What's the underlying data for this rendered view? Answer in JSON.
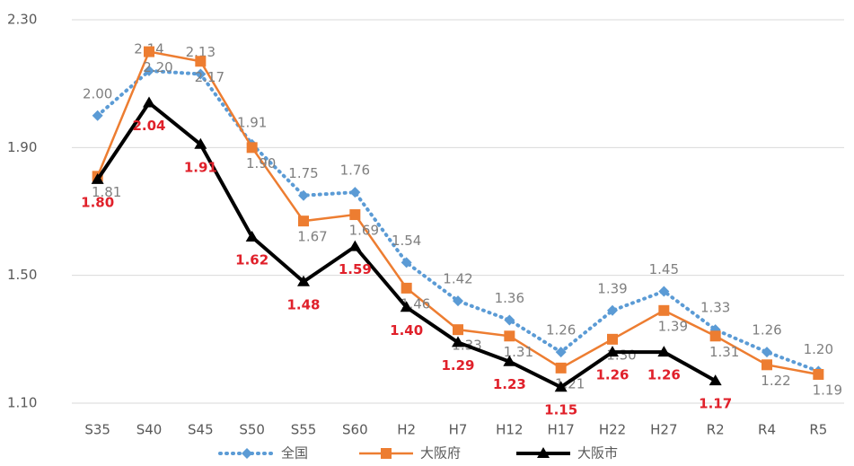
{
  "chart_data": {
    "type": "line",
    "categories": [
      "S35",
      "S40",
      "S45",
      "S50",
      "S55",
      "S60",
      "H2",
      "H7",
      "H12",
      "H17",
      "H22",
      "H27",
      "R2",
      "R4",
      "R5"
    ],
    "ylim": [
      1.1,
      2.3
    ],
    "yticks": [
      {
        "value": 1.1,
        "label": "1.10"
      },
      {
        "value": 1.5,
        "label": "1.50"
      },
      {
        "value": 1.9,
        "label": "1.90"
      },
      {
        "value": 2.3,
        "label": "2.30"
      }
    ],
    "grid": true,
    "legend": "bottom",
    "series": [
      {
        "name": "全国",
        "color": "#5b9bd5",
        "style": "dotted",
        "marker": "diamond",
        "values": [
          2.0,
          2.14,
          2.13,
          1.91,
          1.75,
          1.76,
          1.54,
          1.42,
          1.36,
          1.26,
          1.39,
          1.45,
          1.33,
          1.26,
          1.2
        ],
        "value_labels": [
          "2.00",
          "2.14",
          "2.13",
          "1.91",
          "1.75",
          "1.76",
          "1.54",
          "1.42",
          "1.36",
          "1.26",
          "1.39",
          "1.45",
          "1.33",
          "1.26",
          "1.20"
        ]
      },
      {
        "name": "大阪府",
        "color": "#ed7d31",
        "style": "solid",
        "marker": "square",
        "values": [
          1.81,
          2.2,
          2.17,
          1.9,
          1.67,
          1.69,
          1.46,
          1.33,
          1.31,
          1.21,
          1.3,
          1.39,
          1.31,
          1.22,
          1.19
        ],
        "value_labels": [
          "1.81",
          "2.20",
          "2.17",
          "1.90",
          "1.67",
          "1.69",
          "1.46",
          "1.33",
          "1.31",
          "1.21",
          "1.30",
          "1.39",
          "1.31",
          "1.22",
          "1.19"
        ]
      },
      {
        "name": "大阪市",
        "color": "#000000",
        "style": "bold",
        "marker": "triangle",
        "values": [
          1.8,
          2.04,
          1.91,
          1.62,
          1.48,
          1.59,
          1.4,
          1.29,
          1.23,
          1.15,
          1.26,
          1.26,
          1.17,
          null,
          null
        ],
        "value_labels": [
          "1.80",
          "2.04",
          "1.91",
          "1.62",
          "1.48",
          "1.59",
          "1.40",
          "1.29",
          "1.23",
          "1.15",
          "1.26",
          "1.26",
          "1.17",
          null,
          null
        ]
      }
    ]
  }
}
